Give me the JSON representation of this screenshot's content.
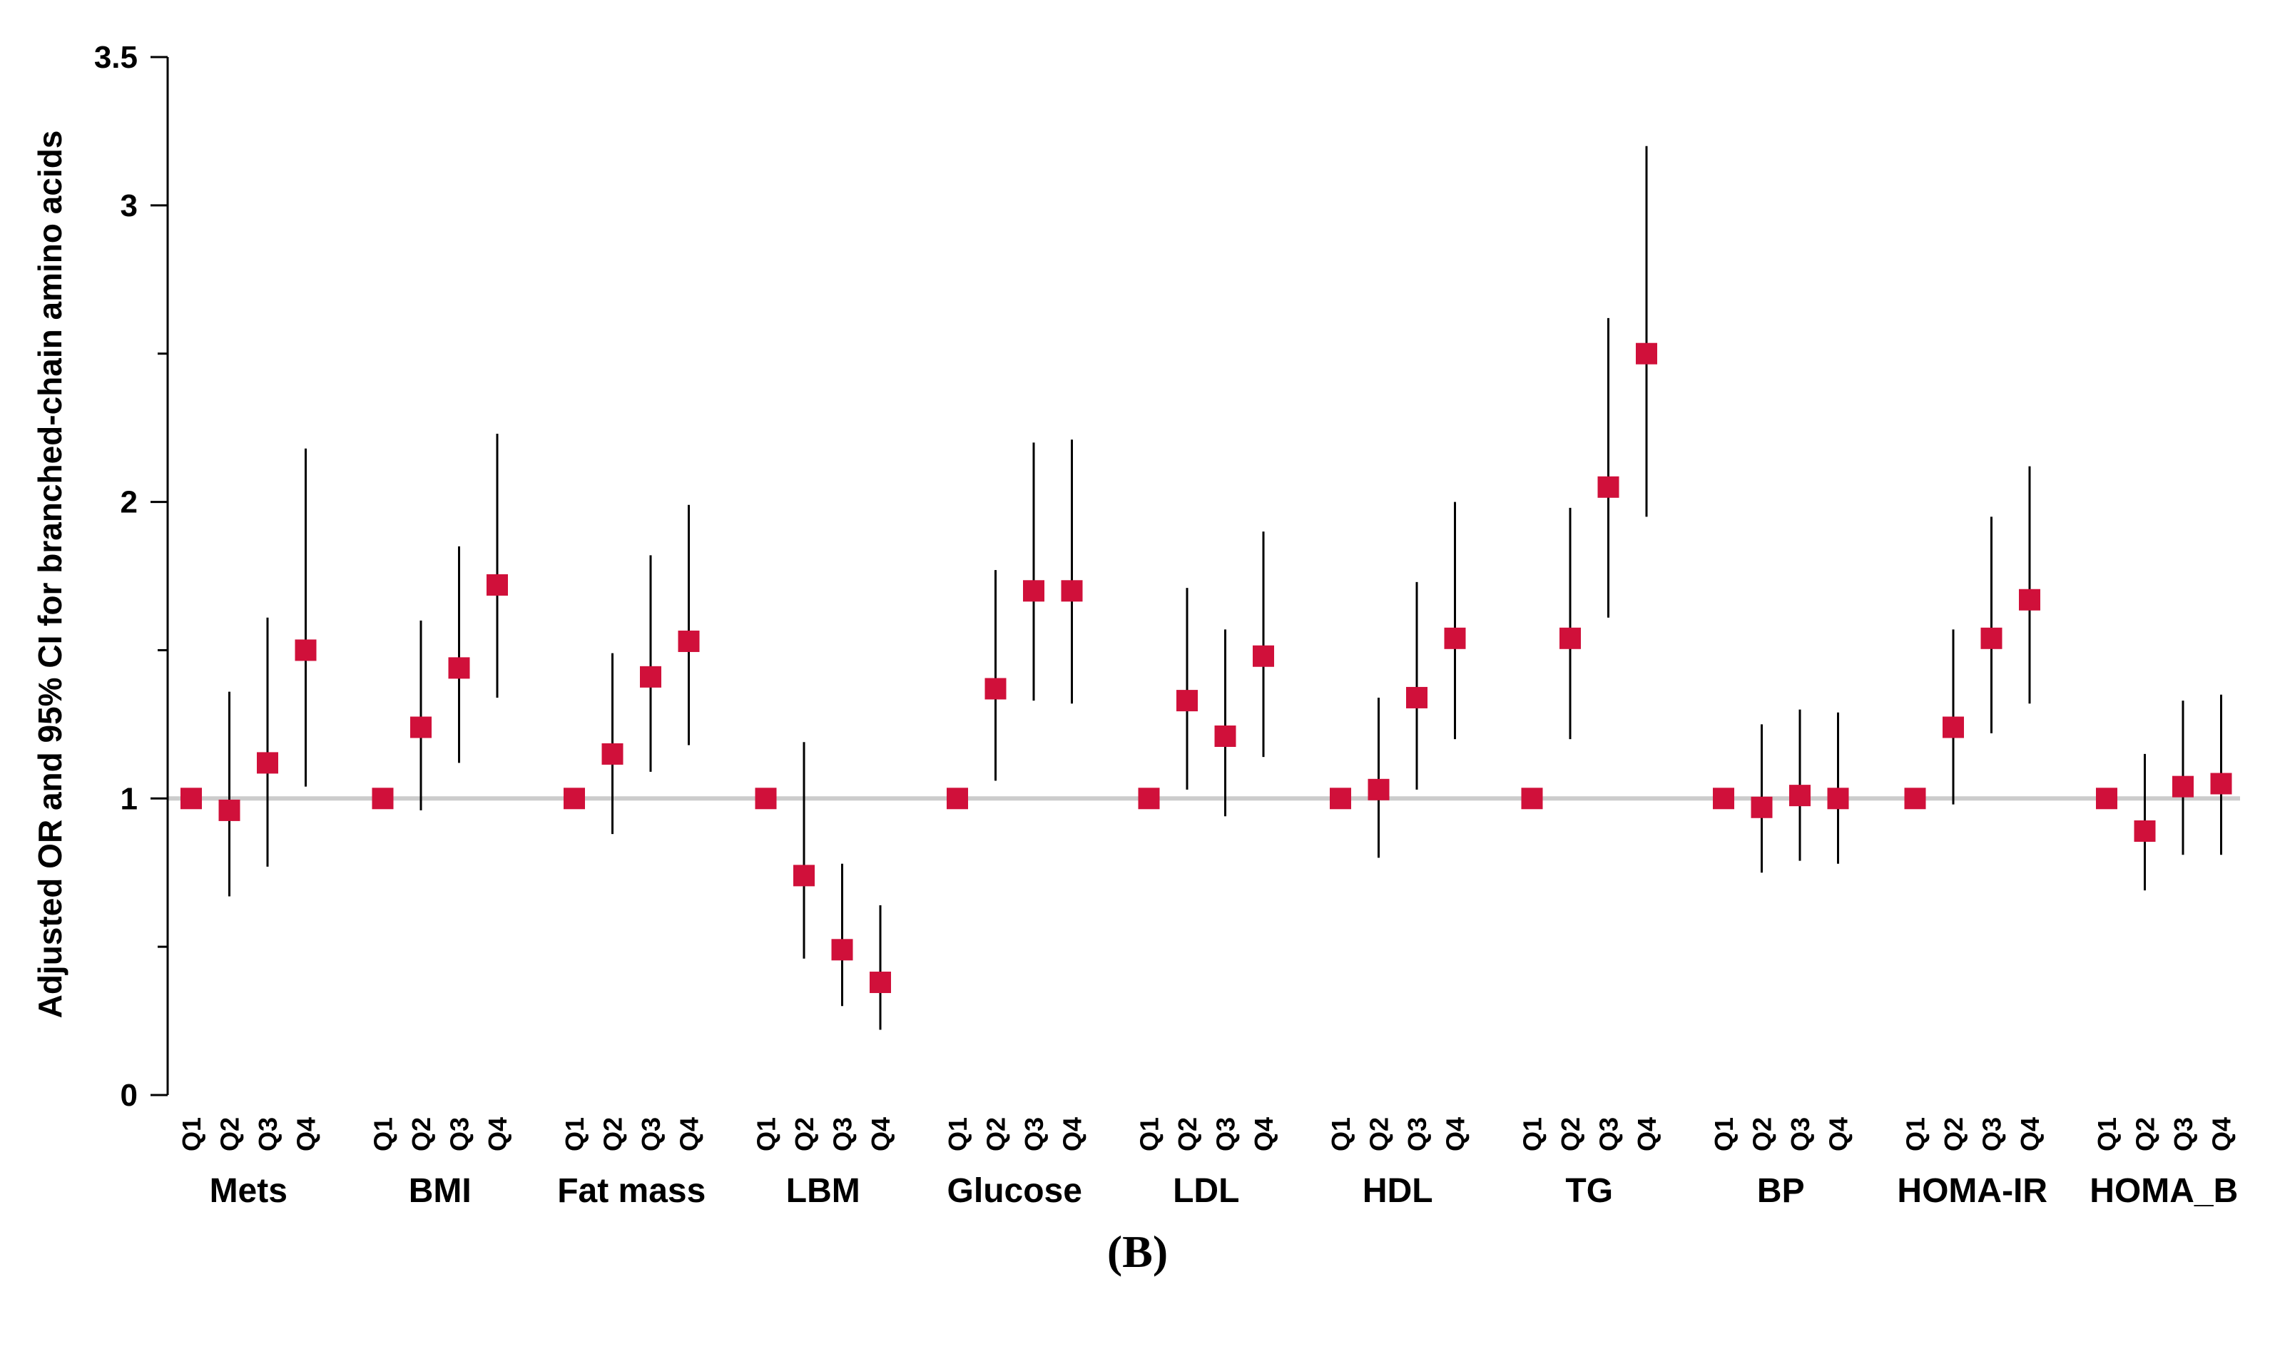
{
  "chart_data": {
    "type": "scatter",
    "subtype": "forest-plot-with-error-bars",
    "ylabel": "Adjusted OR and 95% CI for branched-chain amino acids",
    "ylim": [
      0,
      3.5
    ],
    "yticks": [
      0,
      1,
      2,
      3,
      3.5
    ],
    "ytick_labels": [
      "0",
      "1",
      "2",
      "3",
      "3.5"
    ],
    "reference_line": 1,
    "quartile_labels": [
      "Q1",
      "Q2",
      "Q3",
      "Q4"
    ],
    "marker_color": "#d0103a",
    "errorbar_color": "#000000",
    "reference_line_color": "#cccccc",
    "groups": [
      {
        "name": "Mets",
        "estimates": [
          1.0,
          0.96,
          1.12,
          1.5
        ],
        "lower": [
          1.0,
          0.67,
          0.77,
          1.04
        ],
        "upper": [
          1.0,
          1.36,
          1.61,
          2.18
        ]
      },
      {
        "name": "BMI",
        "estimates": [
          1.0,
          1.24,
          1.44,
          1.72
        ],
        "lower": [
          1.0,
          0.96,
          1.12,
          1.34
        ],
        "upper": [
          1.0,
          1.6,
          1.85,
          2.23
        ]
      },
      {
        "name": "Fat mass",
        "estimates": [
          1.0,
          1.15,
          1.41,
          1.53
        ],
        "lower": [
          1.0,
          0.88,
          1.09,
          1.18
        ],
        "upper": [
          1.0,
          1.49,
          1.82,
          1.99
        ]
      },
      {
        "name": "LBM",
        "estimates": [
          1.0,
          0.74,
          0.49,
          0.38
        ],
        "lower": [
          1.0,
          0.46,
          0.3,
          0.22
        ],
        "upper": [
          1.0,
          1.19,
          0.78,
          0.64
        ]
      },
      {
        "name": "Glucose",
        "estimates": [
          1.0,
          1.37,
          1.7,
          1.7
        ],
        "lower": [
          1.0,
          1.06,
          1.33,
          1.32
        ],
        "upper": [
          1.0,
          1.77,
          2.2,
          2.21
        ]
      },
      {
        "name": "LDL",
        "estimates": [
          1.0,
          1.33,
          1.21,
          1.48
        ],
        "lower": [
          1.0,
          1.03,
          0.94,
          1.14
        ],
        "upper": [
          1.0,
          1.71,
          1.57,
          1.9
        ]
      },
      {
        "name": "HDL",
        "estimates": [
          1.0,
          1.03,
          1.34,
          1.54
        ],
        "lower": [
          1.0,
          0.8,
          1.03,
          1.2
        ],
        "upper": [
          1.0,
          1.34,
          1.73,
          2.0
        ]
      },
      {
        "name": "TG",
        "estimates": [
          1.0,
          1.54,
          2.05,
          2.5
        ],
        "lower": [
          1.0,
          1.2,
          1.61,
          1.95
        ],
        "upper": [
          1.0,
          1.98,
          2.62,
          3.2
        ]
      },
      {
        "name": "BP",
        "estimates": [
          1.0,
          0.97,
          1.01,
          1.0
        ],
        "lower": [
          1.0,
          0.75,
          0.79,
          0.78
        ],
        "upper": [
          1.0,
          1.25,
          1.3,
          1.29
        ]
      },
      {
        "name": "HOMA-IR",
        "estimates": [
          1.0,
          1.24,
          1.54,
          1.67
        ],
        "lower": [
          1.0,
          0.98,
          1.22,
          1.32
        ],
        "upper": [
          1.0,
          1.57,
          1.95,
          2.12
        ]
      },
      {
        "name": "HOMA_B",
        "estimates": [
          1.0,
          0.89,
          1.04,
          1.05
        ],
        "lower": [
          1.0,
          0.69,
          0.81,
          0.81
        ],
        "upper": [
          1.0,
          1.15,
          1.33,
          1.35
        ]
      }
    ]
  },
  "caption": "(B)"
}
